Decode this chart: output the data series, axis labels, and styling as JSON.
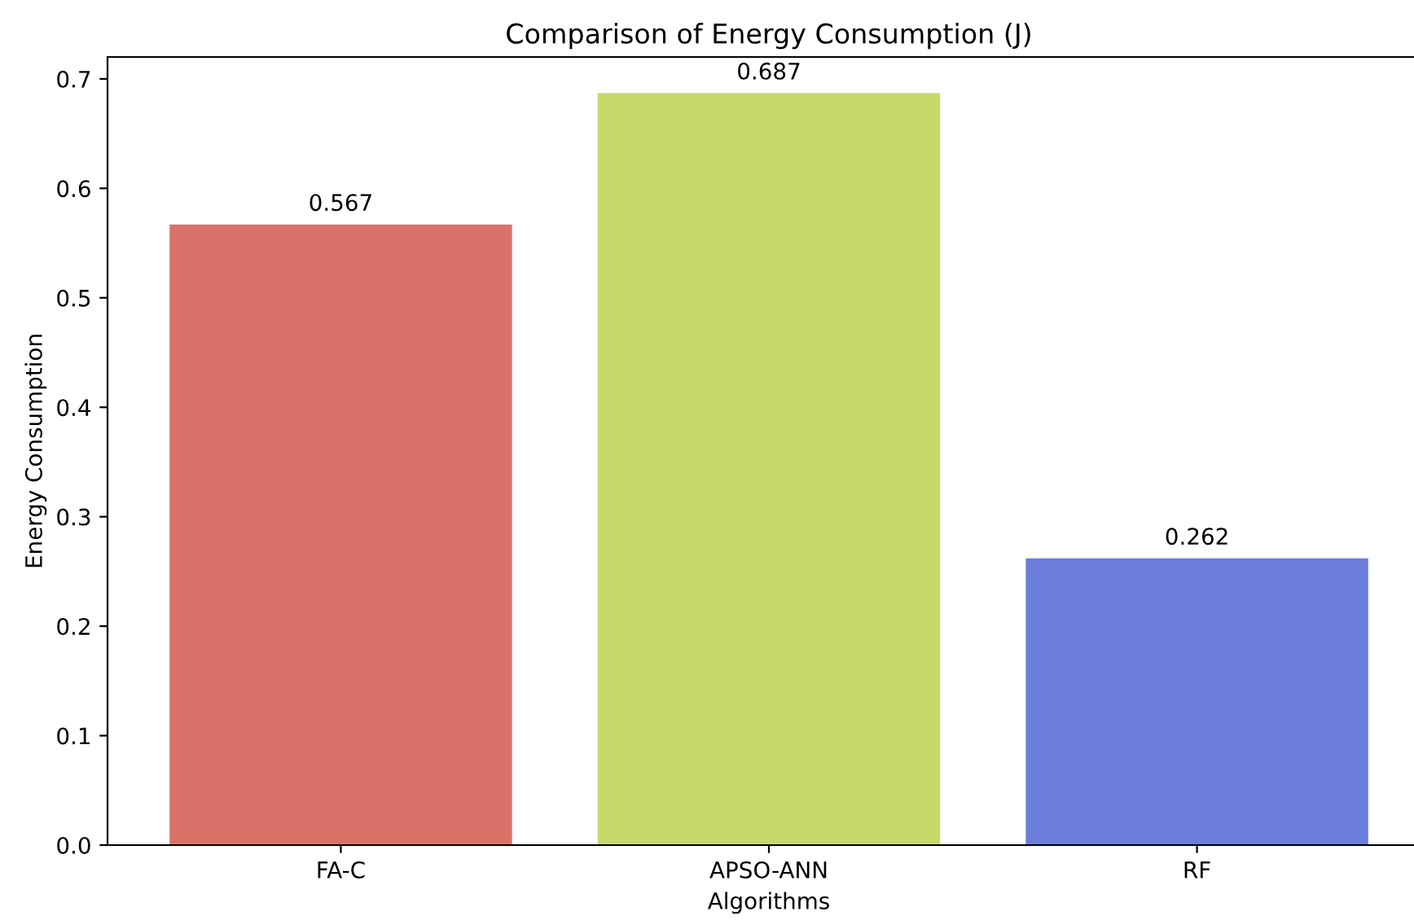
{
  "chart_data": {
    "type": "bar",
    "title": "Comparison of Energy Consumption (J)",
    "xlabel": "Algorithms",
    "ylabel": "Energy Consumption",
    "categories": [
      "FA-C",
      "APSO-ANN",
      "RF"
    ],
    "values": [
      0.567,
      0.687,
      0.262
    ],
    "colors": [
      "#db726a",
      "#c6d96b",
      "#6b7edb"
    ],
    "ylim": [
      0,
      0.72
    ],
    "yticks": [
      {
        "value": 0,
        "label": "0.0"
      },
      0.1,
      0.2,
      0.3,
      0.4,
      0.5,
      0.6,
      0.7
    ],
    "data_labels": true,
    "grid": false,
    "legend": false
  }
}
